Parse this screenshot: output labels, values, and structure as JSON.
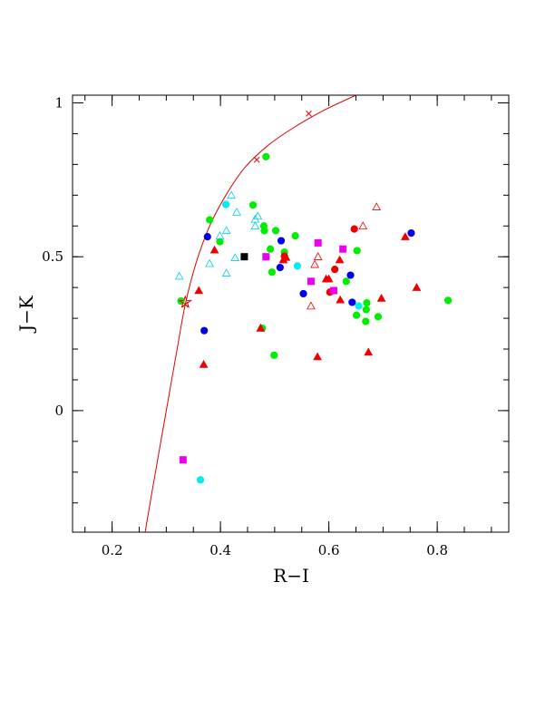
{
  "chart_data": {
    "type": "scatter",
    "title": "",
    "xlabel": "R−I",
    "ylabel": "J−K",
    "xlim": [
      0.127,
      0.932
    ],
    "ylim": [
      -0.395,
      1.025
    ],
    "x_ticks": [
      0.2,
      0.4,
      0.6,
      0.8
    ],
    "x_tick_labels": [
      "0.2",
      "0.4",
      "0.6",
      "0.8"
    ],
    "y_ticks": [
      0,
      0.5,
      1
    ],
    "y_tick_labels": [
      "0",
      "0.5",
      "1"
    ],
    "x_minor_step": 0.05,
    "y_minor_step": 0.1,
    "grid": false,
    "legend": "none",
    "curve": {
      "color": "#dd0000",
      "points": [
        [
          0.261,
          -0.395
        ],
        [
          0.275,
          -0.25
        ],
        [
          0.29,
          -0.1
        ],
        [
          0.305,
          0.05
        ],
        [
          0.32,
          0.2
        ],
        [
          0.335,
          0.345
        ],
        [
          0.355,
          0.48
        ],
        [
          0.38,
          0.6
        ],
        [
          0.41,
          0.7
        ],
        [
          0.445,
          0.79
        ],
        [
          0.49,
          0.865
        ],
        [
          0.54,
          0.925
        ],
        [
          0.59,
          0.975
        ],
        [
          0.65,
          1.025
        ]
      ],
      "markers": [
        [
          0.335,
          0.345
        ],
        [
          0.467,
          0.815
        ],
        [
          0.563,
          0.965
        ]
      ]
    },
    "series": [
      {
        "color": "#00ee00",
        "marker": "circle",
        "filled": true,
        "points": [
          [
            0.327,
            0.356
          ],
          [
            0.38,
            0.62
          ],
          [
            0.399,
            0.549
          ],
          [
            0.46,
            0.668
          ],
          [
            0.477,
            0.268
          ],
          [
            0.48,
            0.6
          ],
          [
            0.481,
            0.585
          ],
          [
            0.484,
            0.825
          ],
          [
            0.492,
            0.525
          ],
          [
            0.495,
            0.45
          ],
          [
            0.499,
            0.18
          ],
          [
            0.502,
            0.585
          ],
          [
            0.518,
            0.515
          ],
          [
            0.538,
            0.568
          ],
          [
            0.632,
            0.42
          ],
          [
            0.651,
            0.31
          ],
          [
            0.652,
            0.52
          ],
          [
            0.668,
            0.29
          ],
          [
            0.669,
            0.328
          ],
          [
            0.67,
            0.35
          ],
          [
            0.691,
            0.305
          ],
          [
            0.82,
            0.358
          ]
        ]
      },
      {
        "color": "#0000ee",
        "marker": "circle",
        "filled": true,
        "points": [
          [
            0.37,
            0.26
          ],
          [
            0.376,
            0.565
          ],
          [
            0.51,
            0.465
          ],
          [
            0.512,
            0.552
          ],
          [
            0.553,
            0.38
          ],
          [
            0.64,
            0.44
          ],
          [
            0.643,
            0.352
          ],
          [
            0.752,
            0.577
          ]
        ]
      },
      {
        "color": "#ee0000",
        "marker": "circle",
        "filled": true,
        "points": [
          [
            0.518,
            0.502
          ],
          [
            0.602,
            0.385
          ],
          [
            0.611,
            0.459
          ],
          [
            0.647,
            0.59
          ]
        ]
      },
      {
        "color": "#00eeee",
        "marker": "circle",
        "filled": true,
        "points": [
          [
            0.363,
            -0.225
          ],
          [
            0.41,
            0.67
          ],
          [
            0.542,
            0.47
          ],
          [
            0.655,
            0.34
          ]
        ]
      },
      {
        "color": "#ee00ee",
        "marker": "square",
        "filled": true,
        "points": [
          [
            0.331,
            -0.16
          ],
          [
            0.484,
            0.5
          ],
          [
            0.567,
            0.42
          ],
          [
            0.58,
            0.545
          ],
          [
            0.609,
            0.39
          ],
          [
            0.626,
            0.525
          ]
        ]
      },
      {
        "color": "#000000",
        "marker": "square",
        "filled": true,
        "points": [
          [
            0.444,
            0.5
          ]
        ]
      },
      {
        "color": "#ee0000",
        "marker": "triangle",
        "filled": true,
        "points": [
          [
            0.36,
            0.39
          ],
          [
            0.369,
            0.15
          ],
          [
            0.389,
            0.522
          ],
          [
            0.474,
            0.268
          ],
          [
            0.516,
            0.49
          ],
          [
            0.521,
            0.498
          ],
          [
            0.579,
            0.175
          ],
          [
            0.595,
            0.428
          ],
          [
            0.6,
            0.428
          ],
          [
            0.62,
            0.49
          ],
          [
            0.621,
            0.36
          ],
          [
            0.673,
            0.19
          ],
          [
            0.697,
            0.365
          ],
          [
            0.741,
            0.565
          ],
          [
            0.762,
            0.4
          ]
        ]
      },
      {
        "color": "#00ccee",
        "marker": "triangle",
        "filled": false,
        "points": [
          [
            0.324,
            0.437
          ],
          [
            0.38,
            0.478
          ],
          [
            0.399,
            0.568
          ],
          [
            0.411,
            0.447
          ],
          [
            0.411,
            0.585
          ],
          [
            0.42,
            0.7
          ],
          [
            0.427,
            0.497
          ],
          [
            0.43,
            0.645
          ],
          [
            0.464,
            0.6
          ],
          [
            0.464,
            0.622
          ],
          [
            0.469,
            0.632
          ]
        ]
      },
      {
        "color": "#ee0000",
        "marker": "triangle",
        "filled": false,
        "points": [
          [
            0.567,
            0.34
          ],
          [
            0.574,
            0.475
          ],
          [
            0.58,
            0.5
          ],
          [
            0.663,
            0.6
          ],
          [
            0.688,
            0.662
          ]
        ]
      },
      {
        "color": "#ee0000",
        "marker": "star",
        "filled": false,
        "points": [
          [
            0.335,
            0.352
          ]
        ]
      }
    ]
  }
}
